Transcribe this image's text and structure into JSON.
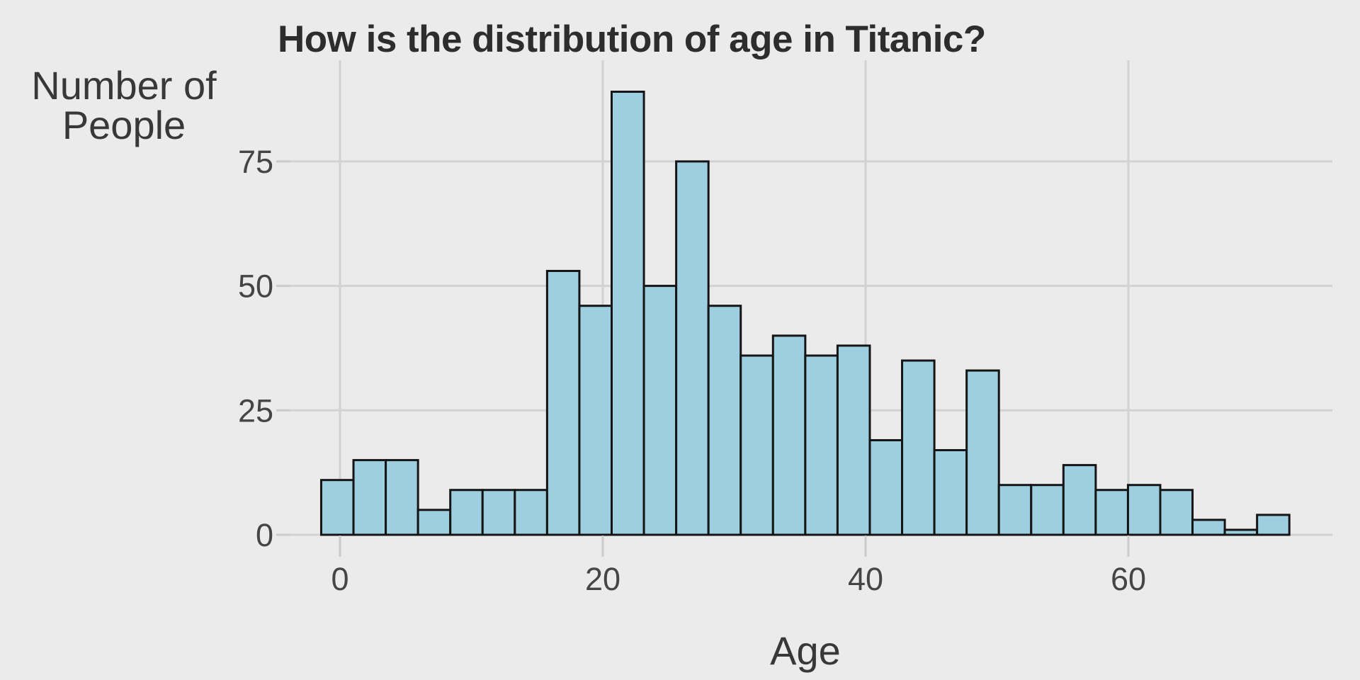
{
  "labels": {
    "title": "How is the distribution of age in Titanic?",
    "ylabel_line1": "Number of",
    "ylabel_line2": "People",
    "xlabel": "Age"
  },
  "colors": {
    "background": "#EBEBEB",
    "gridline": "#D2D2D2",
    "tick_mark": "#CBCBCB",
    "bar_fill": "#9ECFE0",
    "bar_stroke": "#151515",
    "title_text": "#2D2D2D",
    "axis_title_text": "#383838",
    "tick_label_text": "#454545"
  },
  "chart_data": {
    "type": "bar",
    "subtype": "histogram",
    "title": "How is the distribution of age in Titanic?",
    "xlabel": "Age",
    "ylabel": "Number of People",
    "bin_start": -1.43,
    "bin_width": 2.456,
    "bin_centers": [
      -0.2,
      2.26,
      4.71,
      7.17,
      9.62,
      12.08,
      14.54,
      16.99,
      19.45,
      21.9,
      24.36,
      26.81,
      29.27,
      31.73,
      34.18,
      36.64,
      39.09,
      41.55,
      44.0,
      46.46,
      48.92,
      51.37,
      53.83,
      56.28,
      58.74,
      61.19,
      63.65,
      66.11,
      68.56,
      71.02
    ],
    "values": [
      11,
      15,
      15,
      5,
      9,
      9,
      9,
      53,
      46,
      89,
      50,
      75,
      46,
      36,
      40,
      36,
      38,
      19,
      35,
      17,
      33,
      10,
      10,
      14,
      9,
      10,
      9,
      3,
      1,
      4
    ],
    "total_count": 756,
    "x_ticks": [
      0,
      20,
      40,
      60
    ],
    "y_ticks": [
      0,
      25,
      50,
      75
    ],
    "xlim": [
      -3.8,
      75.5
    ],
    "ylim": [
      -4.5,
      95.3
    ],
    "grid": true,
    "legend": false
  }
}
